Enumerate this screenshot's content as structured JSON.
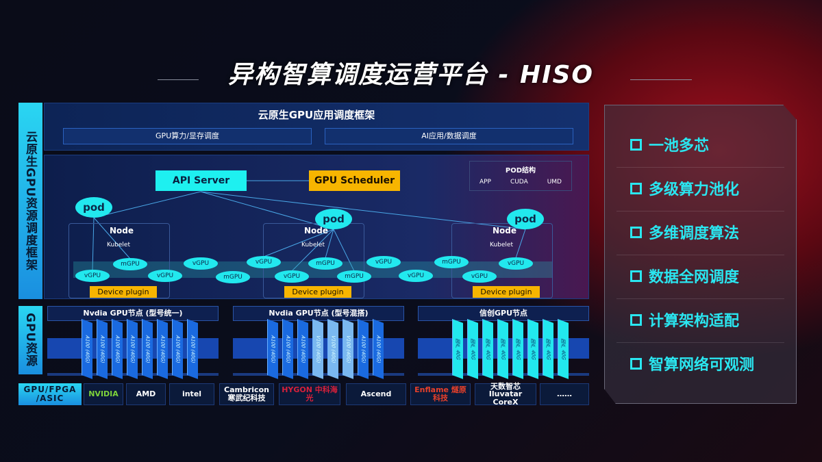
{
  "title": "异构智算调度运营平台 - HISO",
  "left_labels": {
    "framework": "云原生GPU资源调度框架",
    "resources": "GPU资源",
    "chips": "GPU/FPGA /ASIC"
  },
  "framework": {
    "title": "云原生GPU应用调度框架",
    "bar1": "GPU算力/显存调度",
    "bar2": "AI应用/数据调度",
    "api_server": "API Server",
    "gpu_scheduler": "GPU Scheduler",
    "pod_struct": {
      "title": "POD结构",
      "items": [
        "APP",
        "CUDA",
        "UMD"
      ]
    },
    "pod": "pod",
    "node": "Node",
    "kubelet": "Kubelet",
    "device_plugin": "Device plugin",
    "vgpu": "vGPU",
    "mgpu": "mGPU"
  },
  "gpu_nodes": [
    {
      "title": "Nvdia GPU节点 (型号统一)",
      "cards": [
        "A100 (40G)",
        "A100 (40G)",
        "A100 (40G)",
        "A100 (40G)",
        "A100 (40G)",
        "A100 (40G)",
        "A100 (40G)",
        "A100 (40G)"
      ]
    },
    {
      "title": "Nvdia GPU节点 (型号混搭)",
      "cards": [
        "A100 (40G)",
        "A100 (40G)",
        "A100 (40G)",
        "V100 (40G)",
        "V100 (40G)",
        "V100 (40G)",
        "A100 (40G)",
        "A100 (40G)"
      ]
    },
    {
      "title": "信创GPU节点",
      "cards": [
        "国产 40G",
        "国产 40G",
        "国产 40G",
        "国产 40G",
        "国产 40G",
        "国产 40G",
        "国产 40G",
        "国产 40G"
      ]
    }
  ],
  "vendors": [
    "NVIDIA",
    "AMD",
    "intel",
    "Cambricon 寒武纪科技",
    "HYGON 中科海光",
    "Ascend",
    "Enflame 燧原科技",
    "天数智芯 Iluvatar CoreX",
    "……"
  ],
  "features": [
    "一池多芯",
    "多级算力池化",
    "多维调度算法",
    "数据全网调度",
    "计算架构适配",
    "智算网络可观测"
  ],
  "colors": {
    "accent_cyan": "#22e8ee",
    "accent_yellow": "#f7b500",
    "brand_red": "#a0101e"
  }
}
